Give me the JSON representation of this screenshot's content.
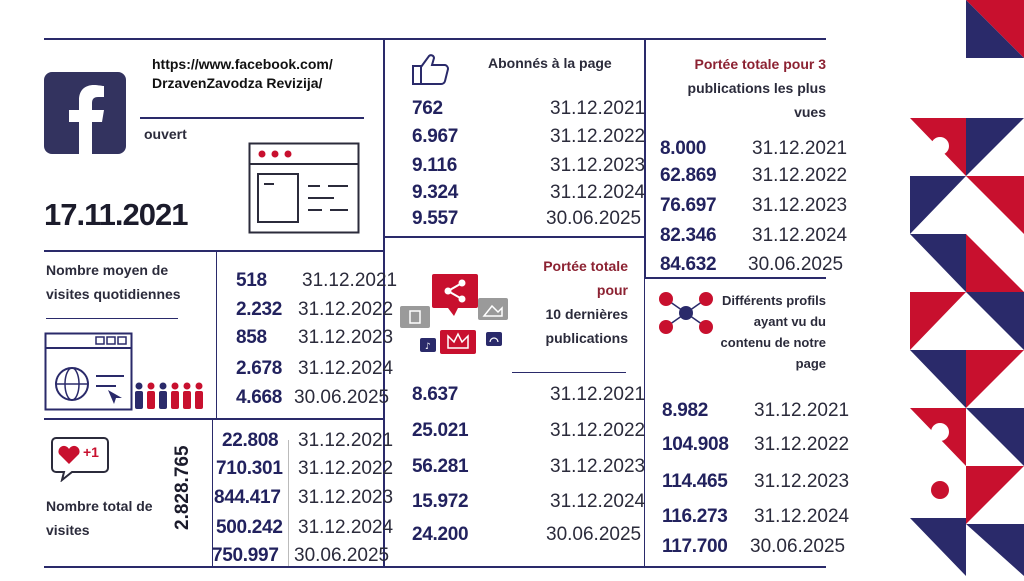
{
  "colors": {
    "navy": "#2a2a6a",
    "red": "#c8102e",
    "maroon": "#8c2232",
    "facebook": "#33335f"
  },
  "facebook_block": {
    "url": "https://www.facebook.com/\nDrzavenZavodza Revizija/",
    "status": "ouvert",
    "date": "17.11.2021",
    "icon": "facebook-logo-icon"
  },
  "daily_visits": {
    "label": "Nombre moyen de visites quotidiennes",
    "rows": [
      {
        "value": "518",
        "date": "31.12.2021"
      },
      {
        "value": "2.232",
        "date": "31.12.2022"
      },
      {
        "value": "858",
        "date": "31.12.2023"
      },
      {
        "value": "2.678",
        "date": "31.12.2024"
      },
      {
        "value": "4.668",
        "date": "30.06.2025"
      }
    ]
  },
  "total_visits": {
    "label": "Nombre total de visites",
    "total": "2.828.765",
    "badge": "+1",
    "rows": [
      {
        "value": "22.808",
        "date": "31.12.2021"
      },
      {
        "value": "710.301",
        "date": "31.12.2022"
      },
      {
        "value": "844.417",
        "date": "31.12.2023"
      },
      {
        "value": "500.242",
        "date": "31.12.2024"
      },
      {
        "value": "750.997",
        "date": "30.06.2025"
      }
    ]
  },
  "subscribers": {
    "label": "Abonnés à la page",
    "rows": [
      {
        "value": "762",
        "date": "31.12.2021"
      },
      {
        "value": "6.967",
        "date": "31.12.2022"
      },
      {
        "value": "9.116",
        "date": "31.12.2023"
      },
      {
        "value": "9.324",
        "date": "31.12.2024"
      },
      {
        "value": "9.557",
        "date": "30.06.2025"
      }
    ]
  },
  "reach_10": {
    "label_red": "Portée totale pour",
    "label_dark": "10 dernières publications",
    "rows": [
      {
        "value": "8.637",
        "date": "31.12.2021"
      },
      {
        "value": "25.021",
        "date": "31.12.2022"
      },
      {
        "value": "56.281",
        "date": "31.12.2023"
      },
      {
        "value": "15.972",
        "date": "31.12.2024"
      },
      {
        "value": "24.200",
        "date": "30.06.2025"
      }
    ]
  },
  "reach_3": {
    "label_red": "Portée totale pour 3",
    "label_dark": "publications les plus vues",
    "rows": [
      {
        "value": "8.000",
        "date": "31.12.2021"
      },
      {
        "value": "62.869",
        "date": "31.12.2022"
      },
      {
        "value": "76.697",
        "date": "31.12.2023"
      },
      {
        "value": "82.346",
        "date": "31.12.2024"
      },
      {
        "value": "84.632",
        "date": "30.06.2025"
      }
    ]
  },
  "profiles": {
    "label": "Différents profils ayant vu du contenu de notre page",
    "rows": [
      {
        "value": "8.982",
        "date": "31.12.2021"
      },
      {
        "value": "104.908",
        "date": "31.12.2022"
      },
      {
        "value": "114.465",
        "date": "31.12.2023"
      },
      {
        "value": "116.273",
        "date": "31.12.2024"
      },
      {
        "value": "117.700",
        "date": "30.06.2025"
      }
    ]
  }
}
